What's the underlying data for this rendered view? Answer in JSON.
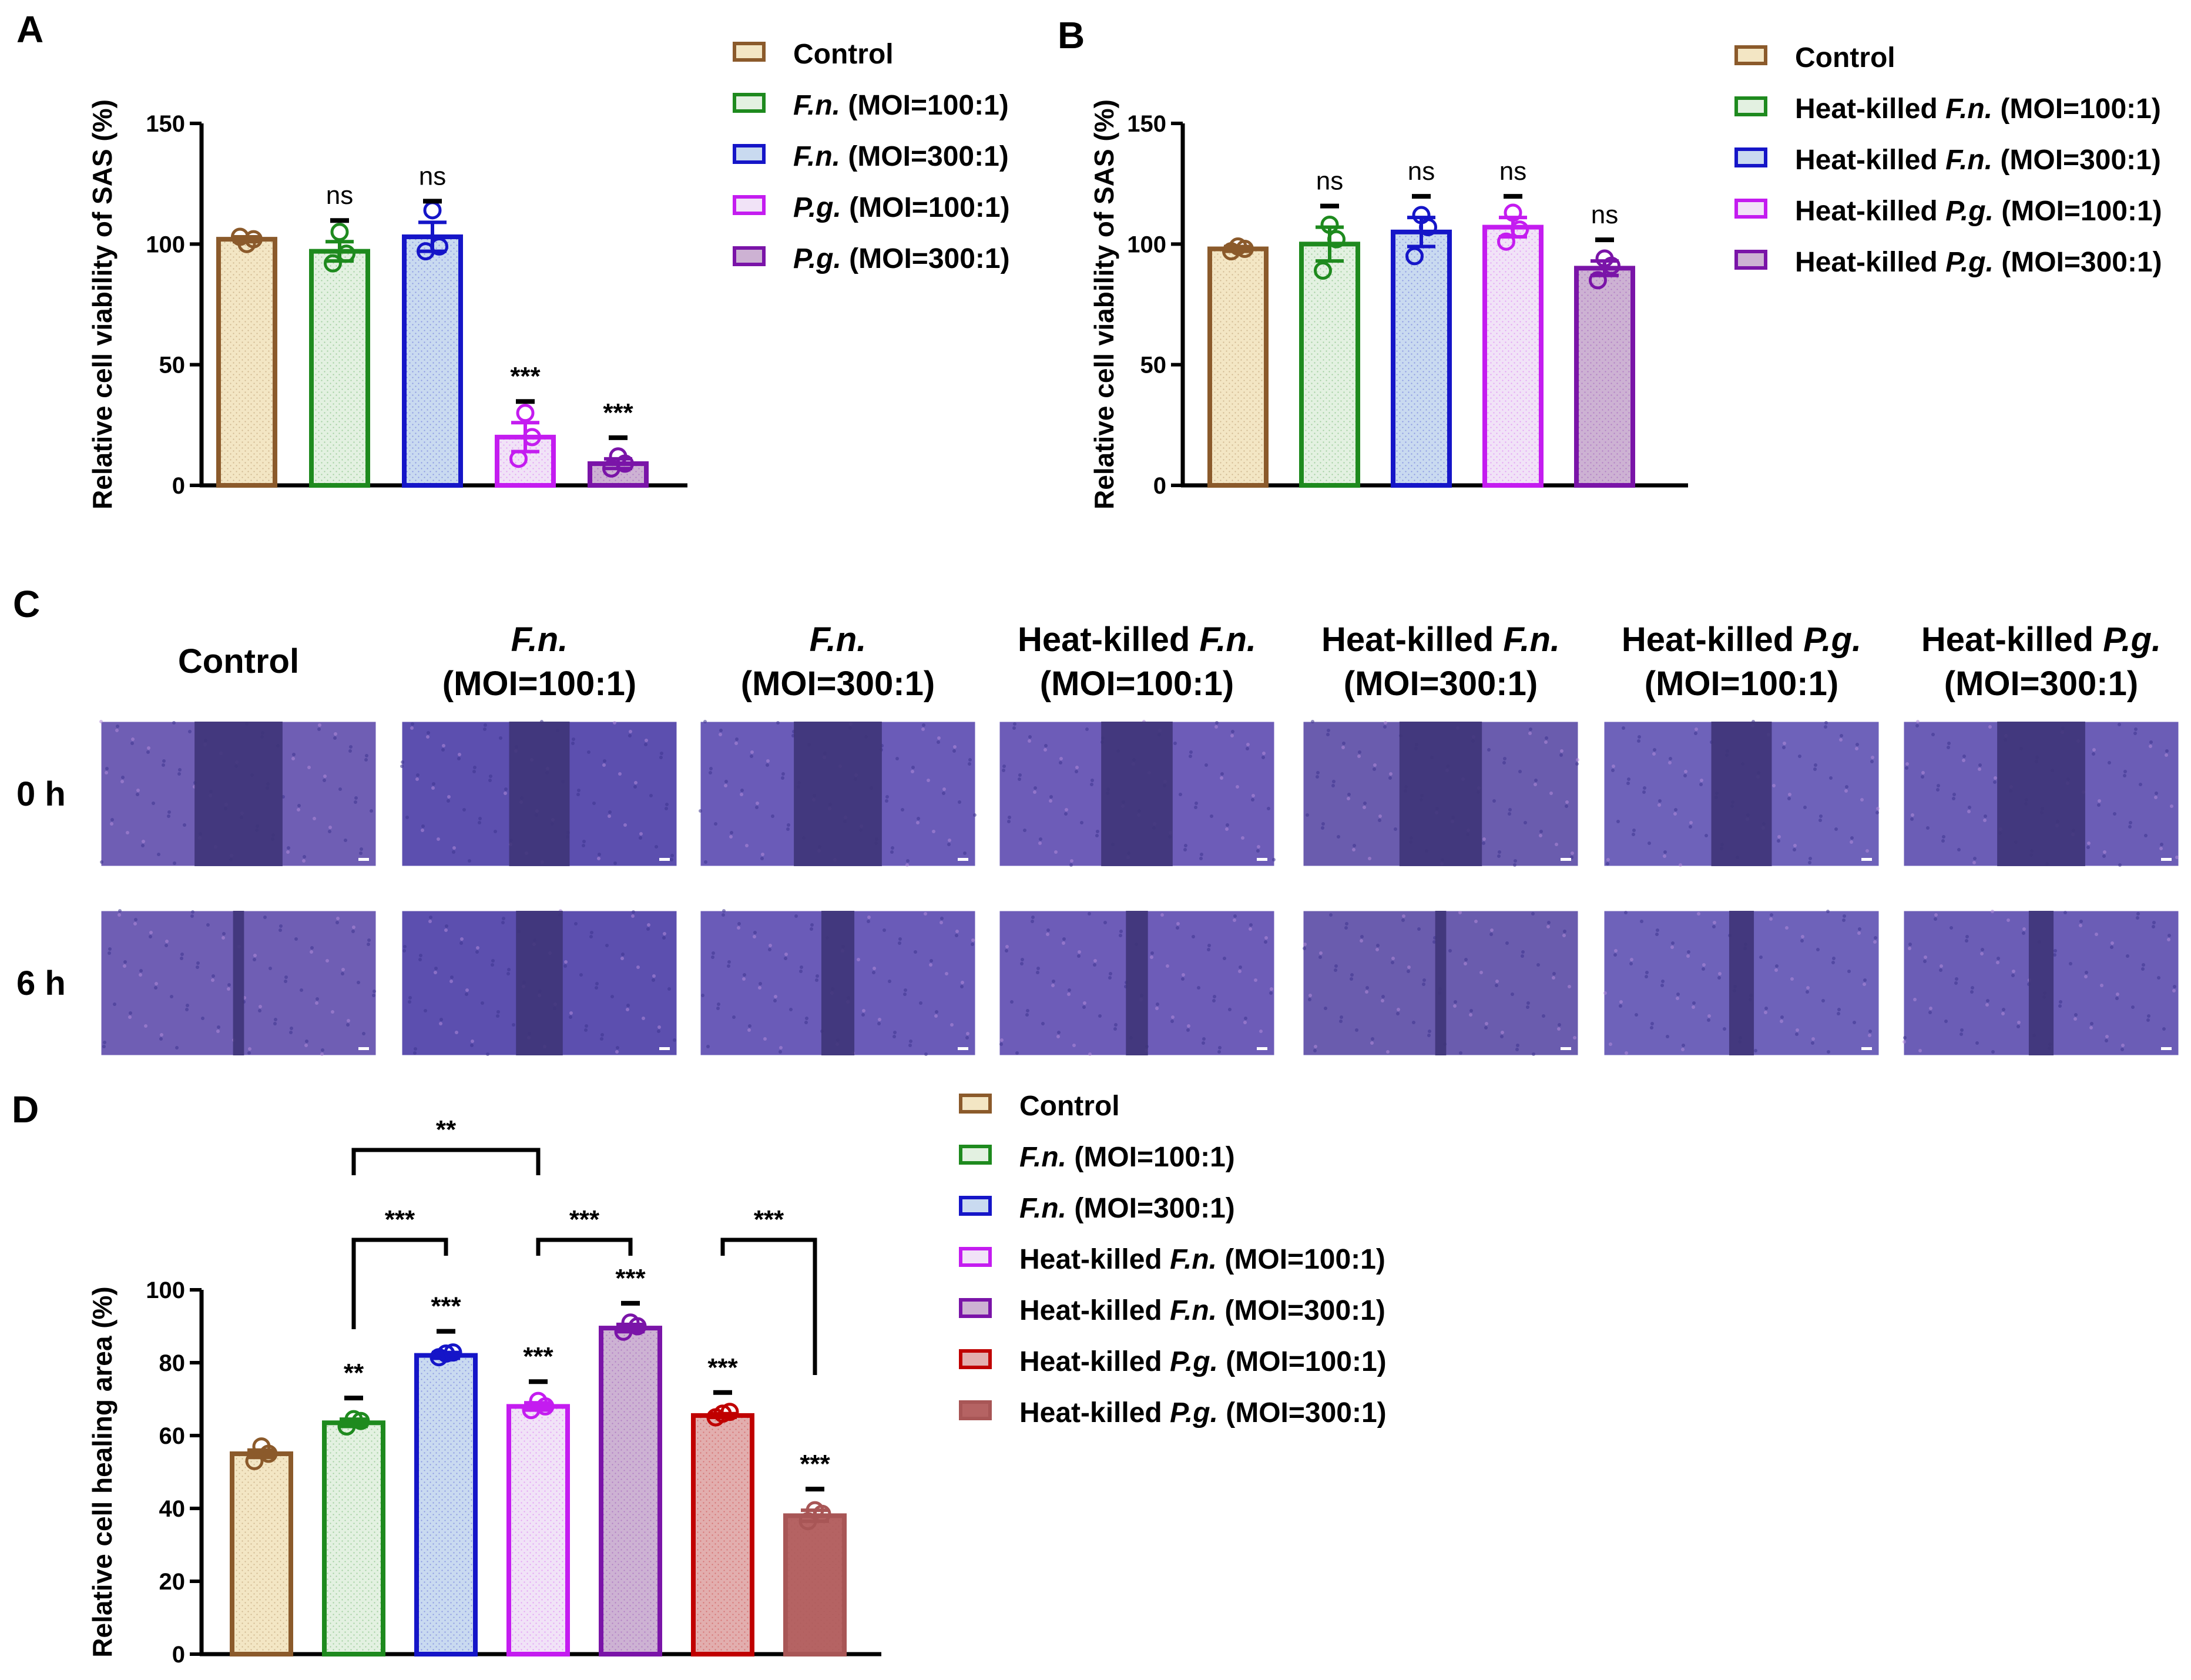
{
  "panels": {
    "A": "A",
    "B": "B",
    "C": "C",
    "D": "D"
  },
  "chart_data": [
    {
      "panel": "A",
      "type": "bar",
      "ylabel": "Relative cell viability of SAS (%)",
      "xlabel": "",
      "ylim": [
        0,
        150
      ],
      "yticks": [
        0,
        50,
        100,
        150
      ],
      "legend_position": "right",
      "series": [
        {
          "name": "Control",
          "name_rich": [
            [
              "Control",
              false
            ]
          ],
          "value": 102,
          "sem": 1,
          "points": [
            100,
            103,
            102
          ],
          "sig": "",
          "stroke": "#8B5A2B",
          "fill": "#F3E6C4"
        },
        {
          "name": "F.n. (MOI=100:1)",
          "name_rich": [
            [
              "F.n.",
              true
            ],
            [
              " (MOI=100:1)",
              false
            ]
          ],
          "value": 97,
          "sem": 4,
          "points": [
            105,
            92,
            96
          ],
          "sig": "ns",
          "stroke": "#1E8A1E",
          "fill": "#E3F1E1"
        },
        {
          "name": "F.n. (MOI=300:1)",
          "name_rich": [
            [
              "F.n.",
              true
            ],
            [
              " (MOI=300:1)",
              false
            ]
          ],
          "value": 103,
          "sem": 6,
          "points": [
            114,
            97,
            99
          ],
          "sig": "ns",
          "stroke": "#1515C8",
          "fill": "#C9DAF0"
        },
        {
          "name": "P.g. (MOI=100:1)",
          "name_rich": [
            [
              "P.g.",
              true
            ],
            [
              " (MOI=100:1)",
              false
            ]
          ],
          "value": 20,
          "sem": 6,
          "points": [
            30,
            11,
            20
          ],
          "sig": "***",
          "stroke": "#C41CF0",
          "fill": "#F1E3F7"
        },
        {
          "name": "P.g. (MOI=300:1)",
          "name_rich": [
            [
              "P.g.",
              true
            ],
            [
              " (MOI=300:1)",
              false
            ]
          ],
          "value": 9,
          "sem": 2,
          "points": [
            12,
            7,
            9
          ],
          "sig": "***",
          "stroke": "#7A14A8",
          "fill": "#CDB2D3"
        }
      ]
    },
    {
      "panel": "B",
      "type": "bar",
      "ylabel": "Relative cell viability of SAS (%)",
      "xlabel": "",
      "ylim": [
        0,
        150
      ],
      "yticks": [
        0,
        50,
        100,
        150
      ],
      "legend_position": "right",
      "series": [
        {
          "name": "Control",
          "name_rich": [
            [
              "Control",
              false
            ]
          ],
          "value": 98,
          "sem": 1,
          "points": [
            99,
            97,
            98
          ],
          "sig": "",
          "stroke": "#8B5A2B",
          "fill": "#F3E6C4"
        },
        {
          "name": "Heat-killed F.n. (MOI=100:1)",
          "name_rich": [
            [
              "Heat-killed ",
              false
            ],
            [
              "F.n.",
              true
            ],
            [
              " (MOI=100:1)",
              false
            ]
          ],
          "value": 100,
          "sem": 7,
          "points": [
            108,
            89,
            102
          ],
          "sig": "ns",
          "stroke": "#1E8A1E",
          "fill": "#E3F1E1"
        },
        {
          "name": "Heat-killed F.n. (MOI=300:1)",
          "name_rich": [
            [
              "Heat-killed ",
              false
            ],
            [
              "F.n.",
              true
            ],
            [
              " (MOI=300:1)",
              false
            ]
          ],
          "value": 105,
          "sem": 6,
          "points": [
            112,
            95,
            107
          ],
          "sig": "ns",
          "stroke": "#1515C8",
          "fill": "#C9DAF0"
        },
        {
          "name": "Heat-killed P.g. (MOI=100:1)",
          "name_rich": [
            [
              "Heat-killed ",
              false
            ],
            [
              "P.g.",
              true
            ],
            [
              " (MOI=100:1)",
              false
            ]
          ],
          "value": 107,
          "sem": 4,
          "points": [
            113,
            101,
            106
          ],
          "sig": "ns",
          "stroke": "#C41CF0",
          "fill": "#F1E3F7"
        },
        {
          "name": "Heat-killed P.g. (MOI=300:1)",
          "name_rich": [
            [
              "Heat-killed ",
              false
            ],
            [
              "P.g.",
              true
            ],
            [
              " (MOI=300:1)",
              false
            ]
          ],
          "value": 90,
          "sem": 3,
          "points": [
            94,
            85,
            91
          ],
          "sig": "ns",
          "stroke": "#7A14A8",
          "fill": "#CDB2D3"
        }
      ]
    },
    {
      "panel": "D",
      "type": "bar",
      "ylabel": "Relative cell healing area (%)",
      "xlabel": "",
      "ylim": [
        0,
        100
      ],
      "yticks": [
        0,
        20,
        40,
        60,
        80,
        100
      ],
      "legend_position": "right",
      "series": [
        {
          "name": "Control",
          "name_rich": [
            [
              "Control",
              false
            ]
          ],
          "value": 55,
          "sem": 1,
          "points": [
            57,
            53,
            55
          ],
          "sig": "",
          "stroke": "#8B5A2B",
          "fill": "#F3E6C4"
        },
        {
          "name": "F.n. (MOI=100:1)",
          "name_rich": [
            [
              "F.n.",
              true
            ],
            [
              " (MOI=100:1)",
              false
            ]
          ],
          "value": 63.5,
          "sem": 1,
          "points": [
            64.5,
            62.5,
            64
          ],
          "sig": "**",
          "stroke": "#1E8A1E",
          "fill": "#E3F1E1"
        },
        {
          "name": "F.n. (MOI=300:1)",
          "name_rich": [
            [
              "F.n.",
              true
            ],
            [
              " (MOI=300:1)",
              false
            ]
          ],
          "value": 82,
          "sem": 0.8,
          "points": [
            82.5,
            81.5,
            82.8
          ],
          "sig": "***",
          "stroke": "#1515C8",
          "fill": "#C9DAF0"
        },
        {
          "name": "Heat-killed F.n. (MOI=100:1)",
          "name_rich": [
            [
              "Heat-killed ",
              false
            ],
            [
              "F.n.",
              true
            ],
            [
              " (MOI=100:1)",
              false
            ]
          ],
          "value": 68,
          "sem": 1,
          "points": [
            69.5,
            67,
            68
          ],
          "sig": "***",
          "stroke": "#C41CF0",
          "fill": "#F1E3F7"
        },
        {
          "name": "Heat-killed F.n. (MOI=300:1)",
          "name_rich": [
            [
              "Heat-killed ",
              false
            ],
            [
              "F.n.",
              true
            ],
            [
              " (MOI=300:1)",
              false
            ]
          ],
          "value": 89.5,
          "sem": 1,
          "points": [
            91,
            88.5,
            90
          ],
          "sig": "***",
          "stroke": "#7A14A8",
          "fill": "#CDB2D3"
        },
        {
          "name": "Heat-killed P.g. (MOI=100:1)",
          "name_rich": [
            [
              "Heat-killed ",
              false
            ],
            [
              "P.g.",
              true
            ],
            [
              " (MOI=100:1)",
              false
            ]
          ],
          "value": 65.5,
          "sem": 0.5,
          "points": [
            66,
            65,
            66.5
          ],
          "sig": "***",
          "stroke": "#C00000",
          "fill": "#E2AEAE"
        },
        {
          "name": "Heat-killed P.g. (MOI=300:1)",
          "name_rich": [
            [
              "Heat-killed ",
              false
            ],
            [
              "P.g.",
              true
            ],
            [
              " (MOI=300:1)",
              false
            ]
          ],
          "value": 38,
          "sem": 1.5,
          "points": [
            39.5,
            36.5,
            38.5
          ],
          "sig": "***",
          "stroke": "#A85656",
          "fill": "#B56363"
        }
      ],
      "comparisons": [
        {
          "from": 1,
          "to": 2,
          "label": "***"
        },
        {
          "from": 3,
          "to": 4,
          "label": "***"
        },
        {
          "from": 1,
          "to": 3,
          "label": "**"
        },
        {
          "from": 5,
          "to": 6,
          "label": "***"
        }
      ]
    }
  ],
  "migration": {
    "columns": [
      {
        "line1": [
          [
            "Control",
            false
          ]
        ],
        "line2": []
      },
      {
        "line1": [
          [
            "F.n.",
            true
          ]
        ],
        "line2": [
          [
            "(MOI=100:1)",
            false
          ]
        ]
      },
      {
        "line1": [
          [
            "F.n.",
            true
          ]
        ],
        "line2": [
          [
            "(MOI=300:1)",
            false
          ]
        ]
      },
      {
        "line1": [
          [
            "Heat-killed ",
            false
          ],
          [
            "F.n.",
            true
          ]
        ],
        "line2": [
          [
            "(MOI=100:1)",
            false
          ]
        ]
      },
      {
        "line1": [
          [
            "Heat-killed ",
            false
          ],
          [
            "F.n.",
            true
          ]
        ],
        "line2": [
          [
            "(MOI=300:1)",
            false
          ]
        ]
      },
      {
        "line1": [
          [
            "Heat-killed ",
            false
          ],
          [
            "P.g.",
            true
          ]
        ],
        "line2": [
          [
            "(MOI=100:1)",
            false
          ]
        ]
      },
      {
        "line1": [
          [
            "Heat-killed ",
            false
          ],
          [
            "P.g.",
            true
          ]
        ],
        "line2": [
          [
            "(MOI=300:1)",
            false
          ]
        ]
      }
    ],
    "rows": [
      {
        "label": "0 h",
        "gap": [
          0.32,
          0.22,
          0.32,
          0.26,
          0.3,
          0.22,
          0.32
        ]
      },
      {
        "label": "6 h",
        "gap": [
          0.04,
          0.17,
          0.12,
          0.08,
          0.04,
          0.09,
          0.09
        ]
      }
    ]
  }
}
